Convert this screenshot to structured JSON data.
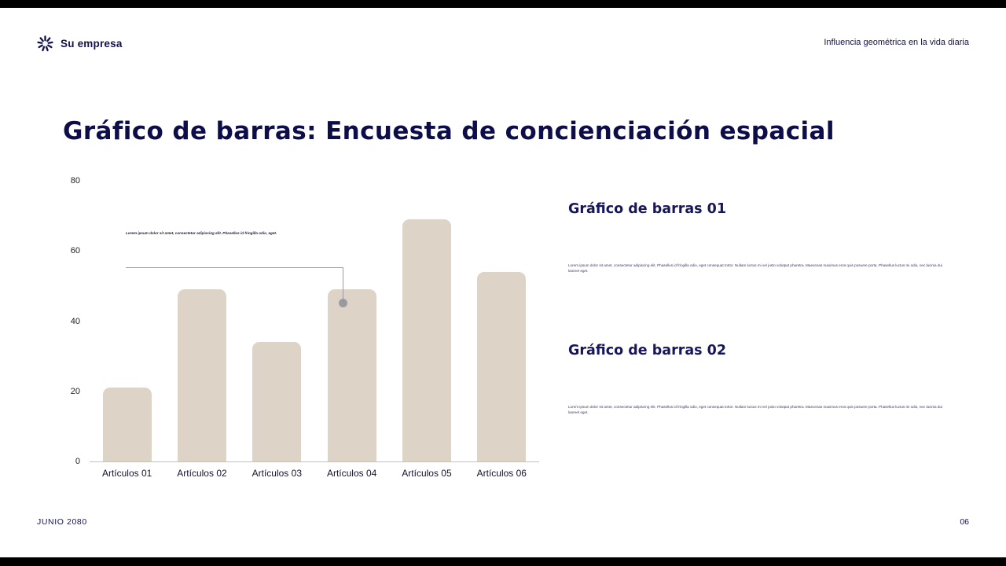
{
  "theme": {
    "accent": "#12124e",
    "bar_color": "#ddd3c7",
    "annotation_color": "#9a9aa0",
    "edge_color": "#000000",
    "background": "#ffffff"
  },
  "header": {
    "logo_icon": "starburst-icon",
    "brand": "Su empresa",
    "topic": "Influencia geométrica en la vida diaria"
  },
  "title": "Gráfico de barras: Encuesta de concienciación espacial",
  "chart_data": {
    "type": "bar",
    "title": "Encuesta de concienciación espacial",
    "categories": [
      "Artículos 01",
      "Artículos 02",
      "Artículos 03",
      "Artículos 04",
      "Artículos 05",
      "Artículos 06"
    ],
    "values": [
      21,
      49,
      34,
      49,
      69,
      54
    ],
    "xlabel": "",
    "ylabel": "",
    "ylim": [
      0,
      80
    ],
    "yticks": [
      0,
      20,
      40,
      60,
      80
    ],
    "grid": false,
    "legend": "none",
    "annotation": {
      "text": "Lorem ipsum dolor sit amet, consectetur adipiscing elit. Phasellus id fringilla odio, eget.",
      "marker_category": "Artículos 04",
      "marker_value": 45
    }
  },
  "right_panel": {
    "sections": [
      {
        "heading": "Gráfico de barras 01",
        "body": "Lorem ipsum dolor sit amet, consectetur adipiscing elit. Phasellus id fringilla odio, eget consequat tortor. Nullam luctus mi vel justo volutpat pharetra. Maecenas maximus eros quis posuere porta. Phasellus luctus mi odio, nec lacinia dui laoreet eget."
      },
      {
        "heading": "Gráfico de barras 02",
        "body": "Lorem ipsum dolor sit amet, consectetur adipiscing elit. Phasellus id fringilla odio, eget consequat tortor. Nullam luctus mi vel justo volutpat pharetra. Maecenas maximus eros quis posuere porta. Phasellus luctus mi odio, nec lacinia dui laoreet eget."
      }
    ]
  },
  "footer": {
    "date": "JUNIO 2080",
    "page_number": "06"
  }
}
